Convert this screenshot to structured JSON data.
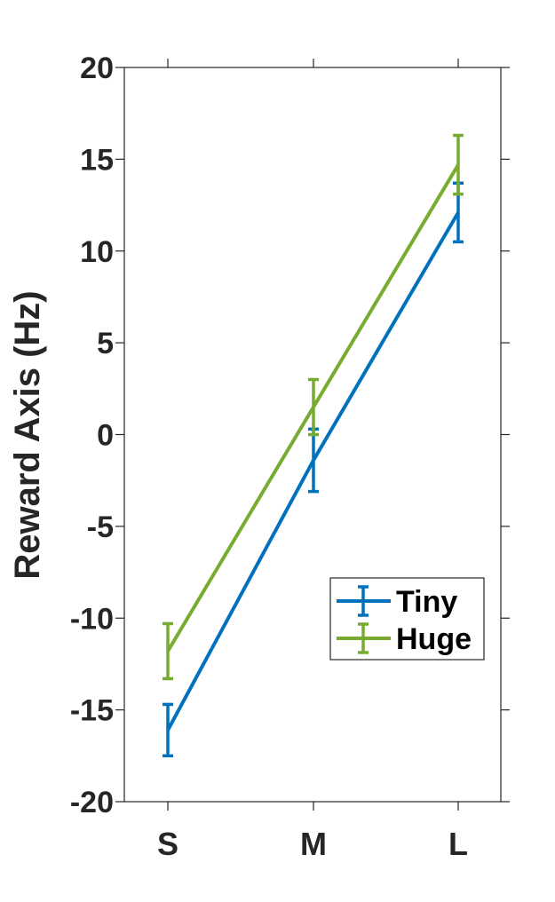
{
  "chart_data": {
    "type": "line",
    "categories": [
      "S",
      "M",
      "L"
    ],
    "ylabel": "Reward Axis (Hz)",
    "xlabel": "",
    "ylim": [
      -20,
      20
    ],
    "yticks": [
      20,
      15,
      10,
      5,
      0,
      -5,
      -10,
      -15,
      -20
    ],
    "ytick_labels": [
      "20",
      "15",
      "10",
      "5",
      "0",
      "-5",
      "-10",
      "-15",
      "-20"
    ],
    "grid": false,
    "legend_position": "lower-right",
    "error_bars": true,
    "series": [
      {
        "name": "Tiny",
        "color": "#0072BD",
        "values": [
          -16.1,
          -1.4,
          12.1
        ],
        "err_low": [
          -17.5,
          -3.1,
          10.5
        ],
        "err_high": [
          -14.7,
          0.3,
          13.7
        ]
      },
      {
        "name": "Huge",
        "color": "#77AC30",
        "values": [
          -11.8,
          1.5,
          14.7
        ],
        "err_low": [
          -13.3,
          0.0,
          13.1
        ],
        "err_high": [
          -10.3,
          3.0,
          16.3
        ]
      }
    ]
  }
}
